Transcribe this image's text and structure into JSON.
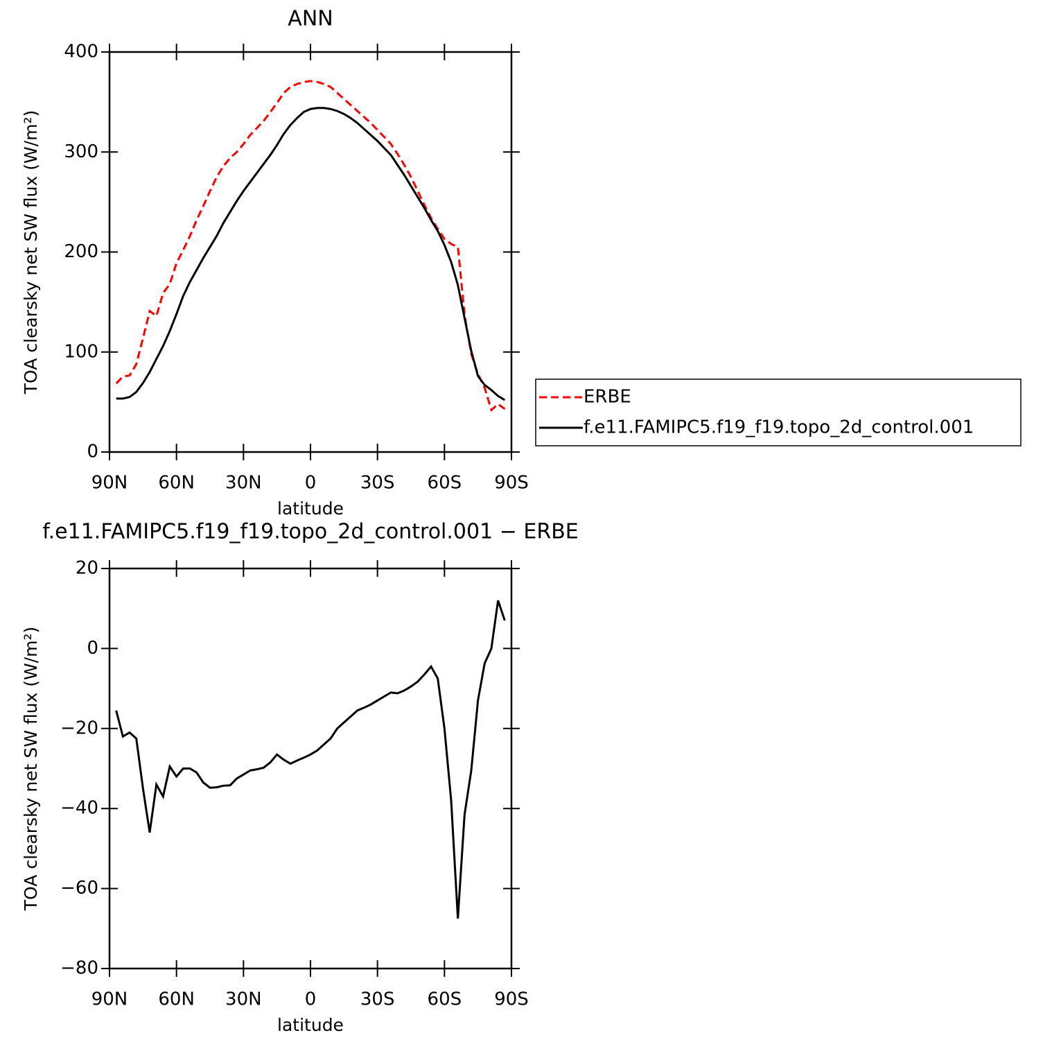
{
  "chart_data": [
    {
      "type": "line",
      "title": "ANN",
      "ylabel": "TOA clearsky net SW flux (W/m²)",
      "xlabel": "latitude",
      "x": [
        87,
        84,
        81,
        78,
        75,
        72,
        69,
        66,
        63,
        60,
        57,
        54,
        51,
        48,
        45,
        42,
        39,
        36,
        33,
        30,
        27,
        24,
        21,
        18,
        15,
        12,
        9,
        6,
        3,
        0,
        -3,
        -6,
        -9,
        -12,
        -15,
        -18,
        -21,
        -24,
        -27,
        -30,
        -33,
        -36,
        -39,
        -42,
        -45,
        -48,
        -51,
        -54,
        -57,
        -60,
        -63,
        -66,
        -69,
        -72,
        -75,
        -78,
        -81,
        -84,
        -87
      ],
      "xlim": [
        90,
        -90
      ],
      "xticks": [
        {
          "value": 90,
          "label": "90N"
        },
        {
          "value": 60,
          "label": "60N"
        },
        {
          "value": 30,
          "label": "30N"
        },
        0,
        {
          "value": -30,
          "label": "30S"
        },
        {
          "value": -60,
          "label": "60S"
        },
        {
          "value": -90,
          "label": "90S"
        }
      ],
      "ylim": [
        0,
        400
      ],
      "yticks": [
        0,
        100,
        200,
        300,
        400
      ],
      "legend": "right",
      "series": [
        {
          "name": "ERBE",
          "color": "#ff0000",
          "linestyle": "dashed",
          "values": [
            68.6,
            75.5,
            76.5,
            88,
            114,
            141,
            136,
            159,
            168,
            189,
            202,
            216,
            232,
            246,
            261,
            275,
            286,
            294,
            300,
            308,
            317,
            324,
            331,
            340,
            349,
            359,
            365,
            368,
            370,
            371,
            370,
            368,
            365,
            359,
            353,
            347,
            341,
            335,
            329,
            322,
            315,
            308,
            298,
            287,
            275,
            261,
            247,
            234,
            223,
            213,
            208,
            205,
            137,
            98,
            78,
            64,
            42,
            48,
            43
          ]
        },
        {
          "name": "f.e11.FAMIPC5.f19_f19.topo_2d_control.001",
          "color": "#000000",
          "linestyle": "solid",
          "values": [
            53.5,
            53.5,
            55,
            60,
            69,
            80,
            93,
            106,
            121,
            138,
            156,
            170,
            182,
            194,
            205,
            216,
            229,
            240,
            251,
            261,
            270,
            279,
            288,
            297,
            307,
            318,
            327,
            334,
            340,
            343,
            344,
            344,
            343,
            341,
            338,
            334,
            329,
            323,
            317,
            311,
            304,
            297,
            287,
            277,
            266,
            255,
            244,
            232,
            221,
            207,
            190,
            167,
            134,
            101,
            76,
            67,
            62,
            56,
            52
          ]
        }
      ]
    },
    {
      "type": "line",
      "title": "f.e11.FAMIPC5.f19_f19.topo_2d_control.001 − ERBE",
      "ylabel": "TOA clearsky net SW flux (W/m²)",
      "xlabel": "latitude",
      "x": [
        87,
        84,
        81,
        78,
        75,
        72,
        69,
        66,
        63,
        60,
        57,
        54,
        51,
        48,
        45,
        42,
        39,
        36,
        33,
        30,
        27,
        24,
        21,
        18,
        15,
        12,
        9,
        6,
        3,
        0,
        -3,
        -6,
        -9,
        -12,
        -15,
        -18,
        -21,
        -24,
        -27,
        -30,
        -33,
        -36,
        -39,
        -42,
        -45,
        -48,
        -51,
        -54,
        -57,
        -60,
        -63,
        -66,
        -69,
        -72,
        -75,
        -78,
        -81,
        -84,
        -87
      ],
      "xlim": [
        90,
        -90
      ],
      "xticks": [
        {
          "value": 90,
          "label": "90N"
        },
        {
          "value": 60,
          "label": "60N"
        },
        {
          "value": 30,
          "label": "30N"
        },
        0,
        {
          "value": -30,
          "label": "30S"
        },
        {
          "value": -60,
          "label": "60S"
        },
        {
          "value": -90,
          "label": "90S"
        }
      ],
      "ylim": [
        -80,
        20
      ],
      "yticks": [
        {
          "value": -80,
          "label": "−80"
        },
        {
          "value": -60,
          "label": "−60"
        },
        {
          "value": -40,
          "label": "−40"
        },
        {
          "value": -20,
          "label": "−20"
        },
        0,
        20
      ],
      "color": "#000000",
      "values": [
        -15.5,
        -22,
        -21,
        -22.5,
        -35,
        -46,
        -34,
        -37,
        -29.5,
        -32,
        -30,
        -30,
        -31,
        -33.5,
        -34.8,
        -34.7,
        -34.3,
        -34.2,
        -32.5,
        -31.5,
        -30.5,
        -30.2,
        -29.8,
        -28.5,
        -26.5,
        -27.8,
        -28.8,
        -28,
        -27.3,
        -26.5,
        -25.5,
        -24,
        -22.5,
        -20,
        -18.5,
        -17,
        -15.5,
        -14.8,
        -14,
        -13,
        -12,
        -11,
        -11.2,
        -10.5,
        -9.5,
        -8.3,
        -6.5,
        -4.5,
        -7.5,
        -20,
        -38,
        -67.5,
        -41.5,
        -30.5,
        -13,
        -3.7,
        0,
        12,
        7
      ]
    }
  ]
}
